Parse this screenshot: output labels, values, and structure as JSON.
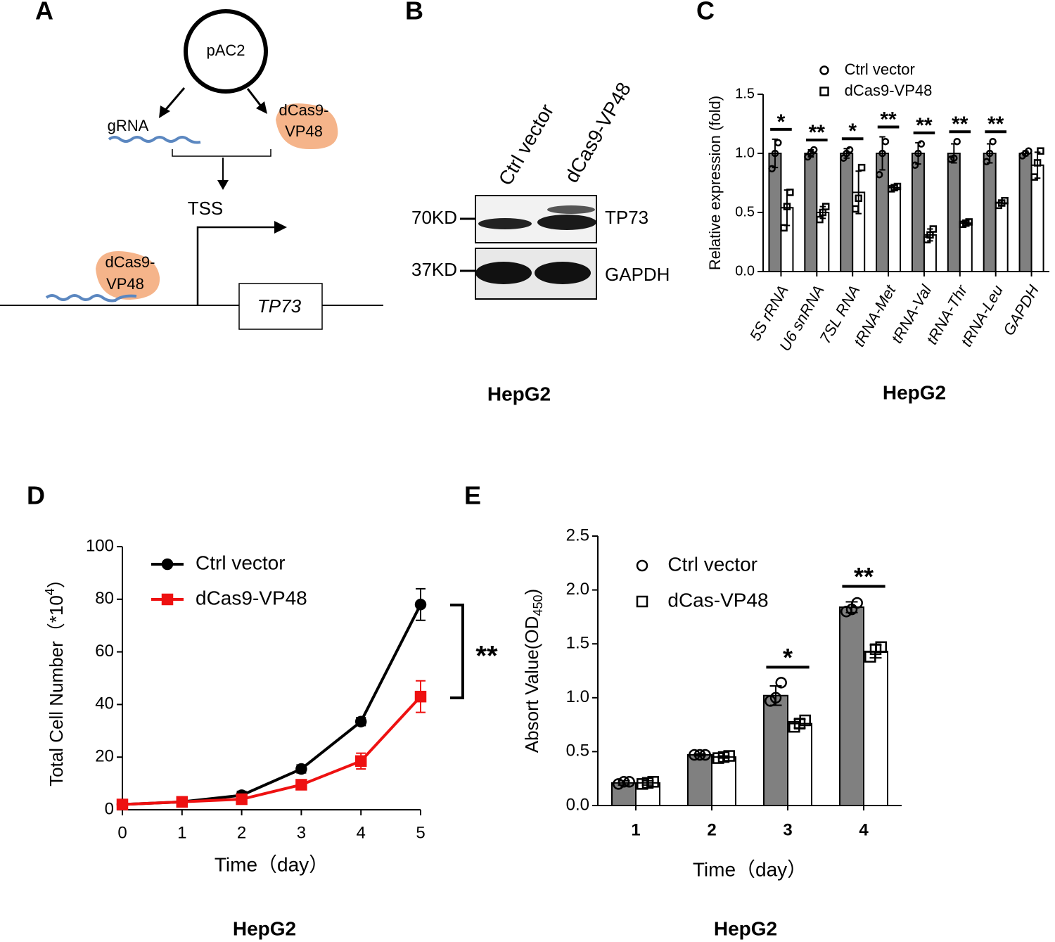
{
  "diagram": {
    "label": "A",
    "plasmid": "pAC2",
    "guide": "gRNA",
    "effector": [
      "dCas9-",
      "VP48"
    ],
    "tss": "TSS",
    "gene": "TP73",
    "bound_effector": [
      "dCas9-",
      "VP48"
    ]
  },
  "blot": {
    "label": "B",
    "lanes": [
      "Ctrl vector",
      "dCas9-VP48"
    ],
    "bands": [
      {
        "size": "70KD",
        "name": "TP73"
      },
      {
        "size": "37KD",
        "name": "GAPDH"
      }
    ],
    "caption": "HepG2"
  },
  "chart_data": [
    {
      "type": "bar",
      "label": "C",
      "caption": "HepG2",
      "ylabel": {
        "text": "Relative expression (fold)"
      },
      "categories": [
        "5S rRNA",
        "U6 snRNA",
        "7SL RNA",
        "tRNA-Met",
        "tRNA-Val",
        "tRNA-Thr",
        "tRNA-Leu",
        "GAPDH"
      ],
      "series": [
        {
          "name": "Ctrl vector",
          "color": "#808080",
          "marker": "circle",
          "values": [
            1.0,
            1.0,
            1.0,
            1.0,
            1.0,
            1.0,
            1.0,
            1.0
          ],
          "errors": [
            0.12,
            0.03,
            0.04,
            0.14,
            0.09,
            0.08,
            0.08,
            0.02
          ],
          "points": [
            [
              0.87,
              1.0,
              1.09
            ],
            [
              0.97,
              1.0,
              1.03
            ],
            [
              0.96,
              1.0,
              1.03
            ],
            [
              0.82,
              1.0,
              1.1
            ],
            [
              0.9,
              1.0,
              1.08
            ],
            [
              0.95,
              0.96,
              1.1
            ],
            [
              0.93,
              1.0,
              1.1
            ],
            [
              0.98,
              1.0,
              1.02
            ]
          ]
        },
        {
          "name": "dCas9-VP48",
          "color": "#ffffff",
          "marker": "square",
          "values": [
            0.54,
            0.5,
            0.67,
            0.71,
            0.31,
            0.41,
            0.58,
            0.9
          ],
          "errors": [
            0.15,
            0.05,
            0.18,
            0.02,
            0.05,
            0.01,
            0.02,
            0.11
          ],
          "points": [
            [
              0.37,
              0.55,
              0.67
            ],
            [
              0.44,
              0.5,
              0.55
            ],
            [
              0.53,
              0.62,
              0.88
            ],
            [
              0.7,
              0.71,
              0.72
            ],
            [
              0.27,
              0.31,
              0.36
            ],
            [
              0.4,
              0.41,
              0.42
            ],
            [
              0.56,
              0.58,
              0.6
            ],
            [
              0.8,
              0.92,
              1.02
            ]
          ]
        }
      ],
      "significance": [
        "*",
        "**",
        "*",
        "**",
        "**",
        "**",
        "**",
        null
      ],
      "ylim": [
        0,
        1.5
      ],
      "yticks": [
        {
          "value": 0,
          "label": "0.0"
        },
        0.5,
        {
          "value": 1,
          "label": "1.0"
        },
        1.5
      ]
    },
    {
      "type": "line",
      "label": "D",
      "caption": "HepG2",
      "ylabel": {
        "text": "Total Cell Number（*10",
        "superscript": "4",
        "suffix": "）"
      },
      "xlabel": "Time（day）",
      "x": [
        0,
        1,
        2,
        3,
        4,
        5
      ],
      "series": [
        {
          "name": "Ctrl vector",
          "color": "#000000",
          "marker": "circle",
          "values": [
            2,
            3,
            5.5,
            15.5,
            33.5,
            78
          ],
          "errors": [
            0.5,
            0.5,
            1.5,
            1.5,
            1.5,
            6
          ]
        },
        {
          "name": "dCas9-VP48",
          "color": "#ee1111",
          "marker": "square",
          "values": [
            2,
            3,
            4,
            9.5,
            18.5,
            43
          ],
          "errors": [
            0.5,
            0.5,
            0.8,
            1,
            3,
            6
          ]
        }
      ],
      "significance": "**",
      "xlim": [
        0,
        5
      ],
      "xticks": [
        0,
        1,
        2,
        3,
        4,
        5
      ],
      "ylim": [
        0,
        100
      ],
      "yticks": [
        0,
        20,
        40,
        60,
        80,
        100
      ]
    },
    {
      "type": "bar",
      "label": "E",
      "caption": "HepG2",
      "ylabel": {
        "text": "Absort Value(OD",
        "subscript": "450",
        "suffix": ")"
      },
      "xlabel": "Time（day）",
      "categories": [
        "1",
        "2",
        "3",
        "4"
      ],
      "series": [
        {
          "name": "Ctrl vector",
          "color": "#808080",
          "marker": "circle",
          "values": [
            0.21,
            0.47,
            1.02,
            1.84
          ],
          "errors": [
            0.02,
            0.01,
            0.09,
            0.05
          ],
          "points": [
            [
              0.2,
              0.22,
              0.22
            ],
            [
              0.47,
              0.47,
              0.47
            ],
            [
              0.97,
              1.0,
              1.14
            ],
            [
              1.8,
              1.82,
              1.88
            ]
          ]
        },
        {
          "name": "dCas-VP48",
          "color": "#ffffff",
          "marker": "square",
          "values": [
            0.21,
            0.45,
            0.76,
            1.43
          ],
          "errors": [
            0.02,
            0.01,
            0.04,
            0.06
          ],
          "points": [
            [
              0.2,
              0.21,
              0.22
            ],
            [
              0.44,
              0.45,
              0.46
            ],
            [
              0.73,
              0.76,
              0.79
            ],
            [
              1.38,
              1.45,
              1.47
            ]
          ]
        }
      ],
      "significance": [
        null,
        null,
        "*",
        "**"
      ],
      "ylim": [
        0,
        2.5
      ],
      "yticks": [
        {
          "value": 0,
          "label": "0.0"
        },
        0.5,
        {
          "value": 1,
          "label": "1.0"
        },
        1.5,
        {
          "value": 2,
          "label": "2.0"
        },
        2.5
      ]
    }
  ]
}
